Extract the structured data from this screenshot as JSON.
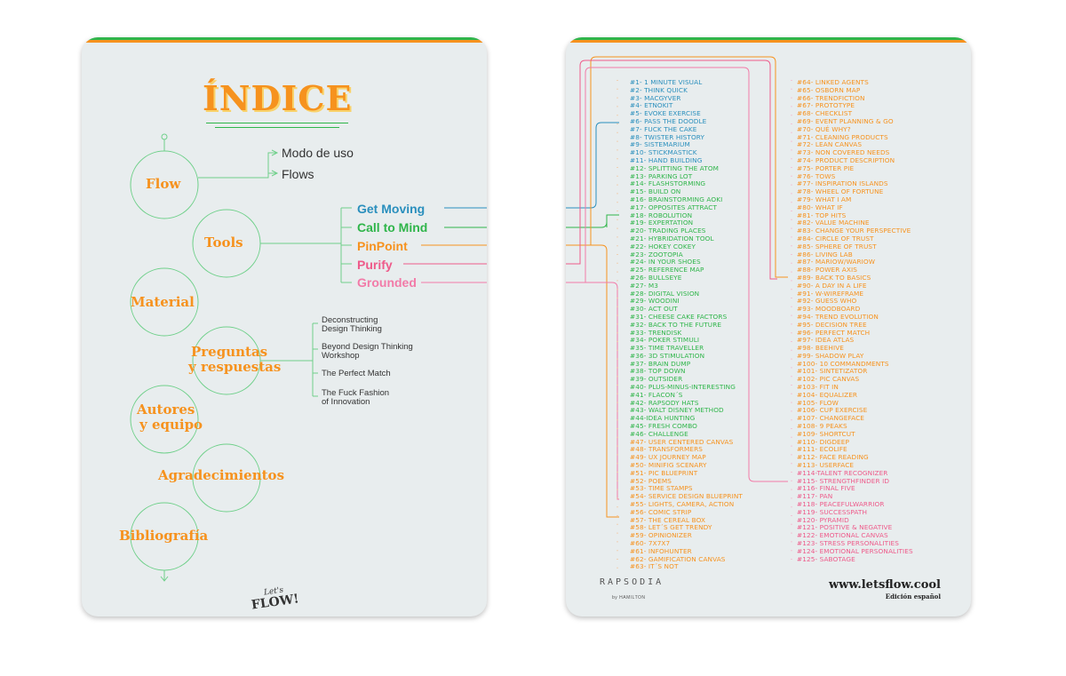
{
  "left_card": {
    "title": "ÍNDICE",
    "sections": {
      "flow": "Flow",
      "tools": "Tools",
      "material": "Material",
      "preguntas_1": "Preguntas",
      "preguntas_2": "y respuestas",
      "autores_1": "Autores",
      "autores_2": "y equipo",
      "agradecimientos": "Agradecimientos",
      "bibliografia": "Bibliografía"
    },
    "flow_items": [
      "Modo de uso",
      "Flows"
    ],
    "flows": [
      {
        "label": "Get Moving",
        "color": "#2a8fbd"
      },
      {
        "label": "Call to Mind",
        "color": "#2fb54a"
      },
      {
        "label": "PinPoint",
        "color": "#f6921e"
      },
      {
        "label": "Purify",
        "color": "#ee5a8a"
      },
      {
        "label": "Grounded",
        "color": "#f27ba8"
      }
    ],
    "preguntas_items": [
      {
        "l1": "Deconstructing",
        "l2": "Design Thinking"
      },
      {
        "l1": "Beyond Design Thinking",
        "l2": "Workshop"
      },
      {
        "l1": "The Perfect Match",
        "l2": ""
      },
      {
        "l1": "The Fuck Fashion",
        "l2": "of Innovation"
      }
    ],
    "logo_line1": "Let's",
    "logo_line2": "FLOW!"
  },
  "right_card": {
    "colors": {
      "blue": "#2a8fbd",
      "green": "#2fb54a",
      "orange": "#f6921e",
      "pink": "#ee5a8a"
    },
    "tools_col1": [
      "#1- 1 MINUTE VISUAL",
      "#2- THINK QUICK",
      "#3- MACGYVER",
      "#4- ETNOKIT",
      "#5- EVOKE EXERCISE",
      "#6- PASS THE DOODLE",
      "#7- FUCK THE CAKE",
      "#8- TWISTER HISTORY",
      "#9- SISTEMARIUM",
      "#10- STICKMASTICK",
      "#11- HAND BUILDING",
      "#12- SPLITTING THE ATOM",
      "#13- PARKING LOT",
      "#14- FLASHSTORMING",
      "#15- BUILD ON",
      "#16- BRAINSTORMING AOKI",
      "#17- OPPOSITES ATTRACT",
      "#18- ROBOLUTION",
      "#19- EXPERTATION",
      "#20- TRADING PLACES",
      "#21- HYBRIDATION TOOL",
      "#22- HOKEY COKEY",
      "#23- ZOOTOPIA",
      "#24- IN YOUR SHOES",
      "#25- REFERENCE MAP",
      "#26- BULLSEYE",
      "#27- M3",
      "#28- DIGITAL VISION",
      "#29- WOODINI",
      "#30- ACT OUT",
      "#31- CHEESE CAKE FACTORS",
      "#32- BACK TO THE FUTURE",
      "#33- TRENDISK",
      "#34- POKER STIMULI",
      "#35- TIME TRAVELLER",
      "#36- 3D STIMULATION",
      "#37- BRAIN DUMP",
      "#38- TOP DOWN",
      "#39- OUTSIDER",
      "#40- PLUS-MINUS-INTERESTING",
      "#41- FLACON´S",
      "#42- RAPSODY HATS",
      "#43- WALT DISNEY METHOD",
      "#44-IDEA HUNTING",
      "#45- FRESH COMBO",
      "#46- CHALLENGE",
      "#47- USER CENTERED CANVAS",
      "#48- TRANSFORMERS",
      "#49- UX JOURNEY MAP",
      "#50- MINIFIG SCENARY",
      "#51- PIC BLUEPRINT",
      "#52- POEMS",
      "#53- TIME STAMPS",
      "#54- SERVICE DESIGN BLUEPRINT",
      "#55- LIGHTS, CAMERA, ACTION",
      "#56- COMIC STRIP",
      "#57- THE CEREAL BOX",
      "#58- LET´S GET TRENDY",
      "#59- OPINIONIZER",
      "#60- 7X7X7",
      "#61- INFOHUNTER",
      "#62- GAMIFICATION CANVAS",
      "#63- IT´S NOT"
    ],
    "tools_col2": [
      "#64- LINKED AGENTS",
      "#65- OSBORN MAP",
      "#66- TRENDFICTION",
      "#67- PROTOTYPE",
      "#68- CHECKLIST",
      "#69- EVENT PLANNING & GO",
      "#70- QUÉ WHY?",
      "#71- CLEANING PRODUCTS",
      "#72- LEAN CANVAS",
      "#73- NON COVERED NEEDS",
      "#74- PRODUCT DESCRIPTION",
      "#75- PORTER PIE",
      "#76- TOWS",
      "#77- INSPIRATION ISLANDS",
      "#78- WHEEL OF FORTUNE",
      "#79- WHAT I AM",
      "#80- WHAT IF",
      "#81- TOP HITS",
      "#82- VALUE MACHINE",
      "#83- CHANGE YOUR PERSPECTIVE",
      "#84- CIRCLE OF TRUST",
      "#85- SPHERE OF TRUST",
      "#86- LIVING LAB",
      "#87- MARIOW/WARIOW",
      "#88- POWER AXIS",
      "#89- BACK TO BASICS",
      "#90- A DAY IN A LIFE",
      "#91- W-WIREFRAME",
      "#92- GUESS WHO",
      "#93- MOODBOARD",
      "#94- TREND EVOLUTION",
      "#95- DECISION TREE",
      "#96- PERFECT MATCH",
      "#97- IDEA ATLAS",
      "#98- BEEHIVE",
      "#99- SHADOW PLAY",
      "#100- 10 COMMANDMENTS",
      "#101- SINTETIZATOR",
      "#102- PIC CANVAS",
      "#103- FIT IN",
      "#104- EQUALIZER",
      "#105- FLOW",
      "#106- CUP EXERCISE",
      "#107- CHANGEFACE",
      "#108- 9 PEAKS",
      "#109- SHORTCUT",
      "#110- DIGDEEP",
      "#111- ECOLIFE",
      "#112- FACE READING",
      "#113- USERFACE",
      "#114-TALENT RECOGNIZER",
      "#115- STRENGTHFINDER ID",
      "#116- FINAL FIVE",
      "#117- PAN",
      "#118- PEACEFULWARRIOR",
      "#119- SUCCESSPATH",
      "#120- PYRAMID",
      "#121- POSITIVE & NEGATIVE",
      "#122- EMOTIONAL CANVAS",
      "#123- STRESS PERSONALITIES",
      "#124- EMOTIONAL PERSONALITIES",
      "#125- SABOTAGE"
    ],
    "brand": "RAPSODIA",
    "brand_sub": "by HAMILTON",
    "url": "www.letsflow.cool",
    "edition": "Edición español"
  }
}
